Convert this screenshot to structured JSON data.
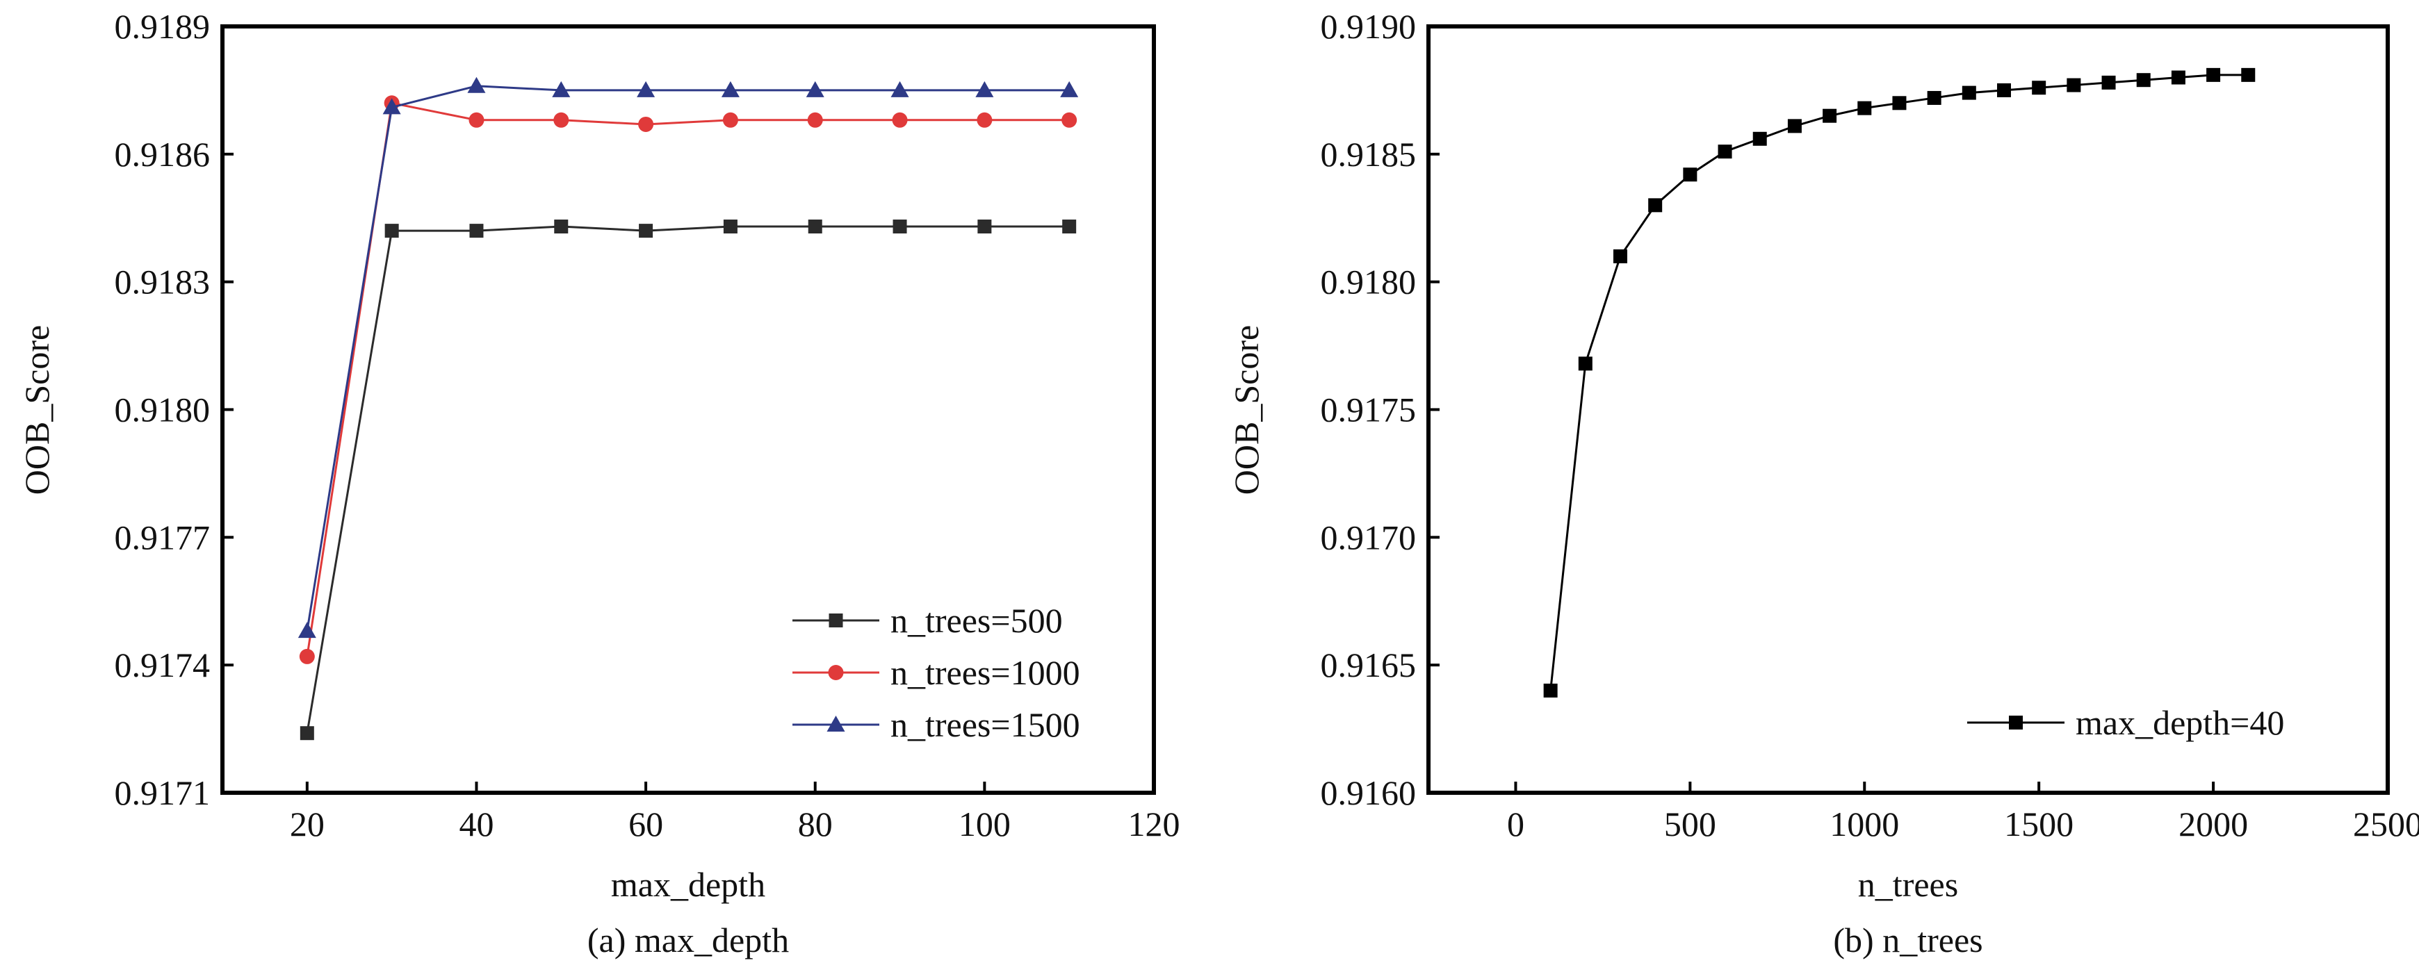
{
  "colors": {
    "n_trees_500": "#2b2b2b",
    "n_trees_1000": "#e03a3a",
    "n_trees_1500": "#2e3a87",
    "max_depth_40": "#000000"
  },
  "chart_data": [
    {
      "type": "line",
      "caption": "(a) max_depth",
      "xlabel": "max_depth",
      "ylabel": "OOB_Score",
      "xlim": [
        10,
        120
      ],
      "ylim": [
        0.9171,
        0.9189
      ],
      "xticks": [
        20,
        40,
        60,
        80,
        100,
        120
      ],
      "yticks": [
        0.9171,
        0.9174,
        0.9177,
        0.918,
        0.9183,
        0.9186,
        0.9189
      ],
      "xtick_labels": [
        "20",
        "40",
        "60",
        "80",
        "100",
        "120"
      ],
      "ytick_labels": [
        "0.9171",
        "0.9174",
        "0.9177",
        "0.9180",
        "0.9183",
        "0.9186",
        "0.9189"
      ],
      "grid": false,
      "legend": "bottom-right",
      "x": [
        20,
        30,
        40,
        50,
        60,
        70,
        80,
        90,
        100,
        110
      ],
      "series": [
        {
          "name": "n_trees=500",
          "marker": "square",
          "color": "#2b2b2b",
          "values": [
            0.91724,
            0.91842,
            0.91842,
            0.91843,
            0.91842,
            0.91843,
            0.91843,
            0.91843,
            0.91843,
            0.91843
          ]
        },
        {
          "name": "n_trees=1000",
          "marker": "circle",
          "color": "#e03a3a",
          "values": [
            0.91742,
            0.91872,
            0.91868,
            0.91868,
            0.91867,
            0.91868,
            0.91868,
            0.91868,
            0.91868,
            0.91868
          ]
        },
        {
          "name": "n_trees=1500",
          "marker": "triangle",
          "color": "#2e3a87",
          "values": [
            0.91748,
            0.91871,
            0.91876,
            0.91875,
            0.91875,
            0.91875,
            0.91875,
            0.91875,
            0.91875,
            0.91875
          ]
        }
      ]
    },
    {
      "type": "line",
      "caption": "(b) n_trees",
      "xlabel": "n_trees",
      "ylabel": "OOB_Score",
      "xlim": [
        -250,
        2500
      ],
      "ylim": [
        0.916,
        0.919
      ],
      "xticks": [
        0,
        500,
        1000,
        1500,
        2000,
        2500
      ],
      "yticks": [
        0.916,
        0.9165,
        0.917,
        0.9175,
        0.918,
        0.9185,
        0.919
      ],
      "xtick_labels": [
        "0",
        "500",
        "1000",
        "1500",
        "2000",
        "2500"
      ],
      "ytick_labels": [
        "0.9160",
        "0.9165",
        "0.9170",
        "0.9175",
        "0.9180",
        "0.9185",
        "0.9190"
      ],
      "grid": false,
      "legend": "bottom-right",
      "x": [
        100,
        200,
        300,
        400,
        500,
        600,
        700,
        800,
        900,
        1000,
        1100,
        1200,
        1300,
        1400,
        1500,
        1600,
        1700,
        1800,
        1900,
        2000,
        2100
      ],
      "series": [
        {
          "name": "max_depth=40",
          "marker": "square",
          "color": "#000000",
          "values": [
            0.9164,
            0.91768,
            0.9181,
            0.9183,
            0.91842,
            0.91851,
            0.91856,
            0.91861,
            0.91865,
            0.91868,
            0.9187,
            0.91872,
            0.91874,
            0.91875,
            0.91876,
            0.91877,
            0.91878,
            0.91879,
            0.9188,
            0.91881,
            0.91881
          ]
        }
      ]
    }
  ]
}
